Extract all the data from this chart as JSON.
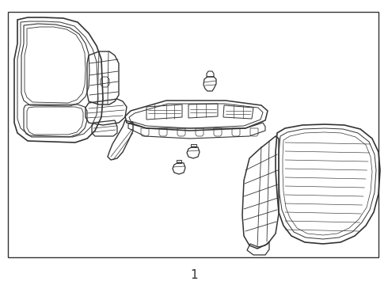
{
  "background_color": "#ffffff",
  "border_color": "#333333",
  "line_color": "#333333",
  "figure_width": 4.9,
  "figure_height": 3.6,
  "dpi": 100,
  "label": "1",
  "label_fontsize": 11
}
